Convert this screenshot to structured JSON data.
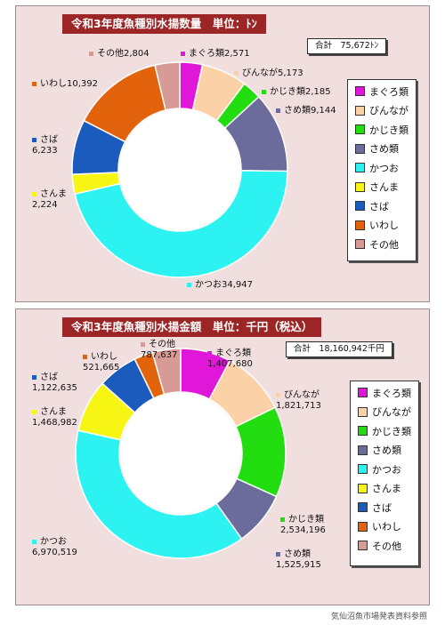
{
  "chart_data": [
    {
      "type": "pie",
      "donut": true,
      "title": "令和3年度魚種別水揚数量　単位：ﾄﾝ",
      "total_label": "合計　75,672ﾄﾝ",
      "legend_position": "right",
      "series": [
        {
          "name": "まぐろ類",
          "value": 2571,
          "value_text": "2,571",
          "color": "#e016d8"
        },
        {
          "name": "びんなが",
          "value": 5173,
          "value_text": "5,173",
          "color": "#fbd1a8"
        },
        {
          "name": "かじき類",
          "value": 2185,
          "value_text": "2,185",
          "color": "#22dd10"
        },
        {
          "name": "さめ類",
          "value": 9144,
          "value_text": "9,144",
          "color": "#6b6b9c"
        },
        {
          "name": "かつお",
          "value": 34947,
          "value_text": "34,947",
          "color": "#2cf2f2"
        },
        {
          "name": "さんま",
          "value": 2224,
          "value_text": "2,224",
          "color": "#f6f514"
        },
        {
          "name": "さば",
          "value": 6233,
          "value_text": "6,233",
          "color": "#1a5bbd"
        },
        {
          "name": "いわし",
          "value": 10392,
          "value_text": "10,392",
          "color": "#e2630c"
        },
        {
          "name": "その他",
          "value": 2804,
          "value_text": "2,804",
          "color": "#d89a94"
        }
      ]
    },
    {
      "type": "pie",
      "donut": true,
      "title": "令和3年度魚種別水揚金額　単位：千円（税込）",
      "total_label": "合計　18,160,942千円",
      "legend_position": "right",
      "series": [
        {
          "name": "まぐろ類",
          "value": 1407680,
          "value_text": "1,407,680",
          "color": "#e016d8"
        },
        {
          "name": "びんなが",
          "value": 1821713,
          "value_text": "1,821,713",
          "color": "#fbd1a8"
        },
        {
          "name": "かじき類",
          "value": 2534196,
          "value_text": "2,534,196",
          "color": "#22dd10"
        },
        {
          "name": "さめ類",
          "value": 1525915,
          "value_text": "1,525,915",
          "color": "#6b6b9c"
        },
        {
          "name": "かつお",
          "value": 6970519,
          "value_text": "6,970,519",
          "color": "#2cf2f2"
        },
        {
          "name": "さんま",
          "value": 1468982,
          "value_text": "1,468,982",
          "color": "#f6f514"
        },
        {
          "name": "さば",
          "value": 1122635,
          "value_text": "1,122,635",
          "color": "#1a5bbd"
        },
        {
          "name": "いわし",
          "value": 521665,
          "value_text": "521,665",
          "color": "#e2630c"
        },
        {
          "name": "その他",
          "value": 787637,
          "value_text": "787,637",
          "color": "#d89a94"
        }
      ]
    }
  ],
  "credit": "気仙沼魚市場発表資料参照"
}
